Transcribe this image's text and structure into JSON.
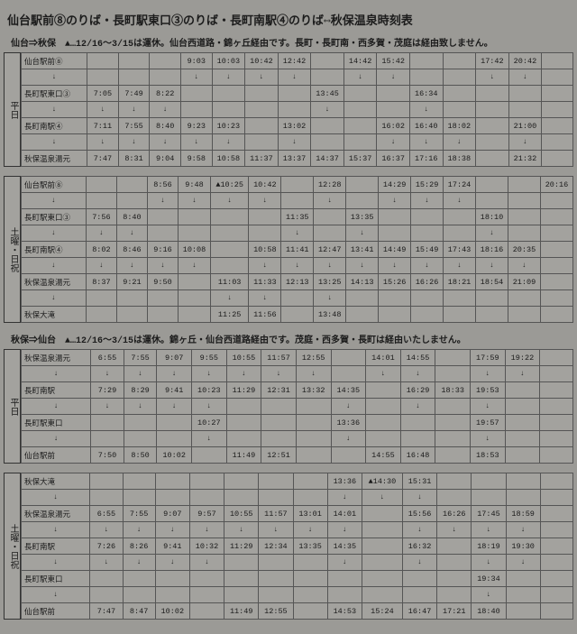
{
  "title": "仙台駅前⑧のりば・長町駅東口③のりば・長町南駅④のりば⇔秋保温泉時刻表",
  "sections": [
    {
      "heading": "仙台⇒秋保　▲…12/16～3/15は運休。仙台西道路・錦ヶ丘経由です。長町・長町南・西多賀・茂庭は経由致しません。",
      "blocks": [
        {
          "day_label": "平日",
          "stops": [
            "仙台駅前⑧",
            "↓",
            "長町駅東口③",
            "↓",
            "長町南駅④",
            "↓",
            "秋保温泉湯元"
          ],
          "cols": 15,
          "rows": [
            [
              "",
              "",
              "",
              "9:03",
              "10:03",
              "10:42",
              "12:42",
              "",
              "14:42",
              "15:42",
              "",
              "",
              "17:42",
              "20:42",
              ""
            ],
            [
              "",
              "",
              "",
              "↓",
              "↓",
              "↓",
              "↓",
              "",
              "↓",
              "↓",
              "",
              "",
              "↓",
              "↓",
              ""
            ],
            [
              "7:05",
              "7:49",
              "8:22",
              "",
              "",
              "",
              "",
              "13:45",
              "",
              "",
              "16:34",
              "",
              "",
              "",
              ""
            ],
            [
              "↓",
              "↓",
              "↓",
              "",
              "",
              "",
              "",
              "↓",
              "",
              "",
              "↓",
              "",
              "",
              "",
              ""
            ],
            [
              "7:11",
              "7:55",
              "8:40",
              "9:23",
              "10:23",
              "",
              "13:02",
              "",
              "",
              "16:02",
              "16:40",
              "18:02",
              "",
              "21:00",
              ""
            ],
            [
              "↓",
              "↓",
              "↓",
              "↓",
              "↓",
              "",
              "↓",
              "",
              "",
              "↓",
              "↓",
              "↓",
              "",
              "↓",
              ""
            ],
            [
              "7:47",
              "8:31",
              "9:04",
              "9:58",
              "10:58",
              "11:37",
              "13:37",
              "14:37",
              "15:37",
              "16:37",
              "17:16",
              "18:38",
              "",
              "21:32",
              ""
            ]
          ]
        },
        {
          "day_label": "土曜・日祝",
          "stops": [
            "仙台駅前⑧",
            "↓",
            "長町駅東口③",
            "↓",
            "長町南駅④",
            "↓",
            "秋保温泉湯元",
            "↓",
            "秋保大滝"
          ],
          "cols": 15,
          "rows": [
            [
              "",
              "",
              "8:56",
              "9:48",
              "▲10:25",
              "10:42",
              "",
              "12:28",
              "",
              "14:29",
              "15:29",
              "17:24",
              "",
              "",
              "20:16"
            ],
            [
              "",
              "",
              "↓",
              "↓",
              "↓",
              "↓",
              "",
              "↓",
              "",
              "↓",
              "↓",
              "↓",
              "",
              "",
              ""
            ],
            [
              "7:56",
              "8:40",
              "",
              "",
              "",
              "",
              "11:35",
              "",
              "13:35",
              "",
              "",
              "",
              "18:10",
              "",
              ""
            ],
            [
              "↓",
              "↓",
              "",
              "",
              "",
              "",
              "↓",
              "",
              "↓",
              "",
              "",
              "",
              "↓",
              "",
              ""
            ],
            [
              "8:02",
              "8:46",
              "9:16",
              "10:08",
              "",
              "10:58",
              "11:41",
              "12:47",
              "13:41",
              "14:49",
              "15:49",
              "17:43",
              "18:16",
              "20:35",
              ""
            ],
            [
              "↓",
              "↓",
              "↓",
              "↓",
              "",
              "↓",
              "↓",
              "↓",
              "↓",
              "↓",
              "↓",
              "↓",
              "↓",
              "↓",
              ""
            ],
            [
              "8:37",
              "9:21",
              "9:50",
              "",
              "11:03",
              "11:33",
              "12:13",
              "13:25",
              "14:13",
              "15:26",
              "16:26",
              "18:21",
              "18:54",
              "21:09",
              ""
            ],
            [
              "",
              "",
              "",
              "",
              "↓",
              "↓",
              "",
              "↓",
              "",
              "",
              "",
              "",
              "",
              "",
              ""
            ],
            [
              "",
              "",
              "",
              "",
              "11:25",
              "11:56",
              "",
              "13:48",
              "",
              "",
              "",
              "",
              "",
              "",
              ""
            ]
          ]
        }
      ]
    },
    {
      "heading": "秋保⇒仙台　▲…12/16～3/15は運休。錦ヶ丘・仙台西道路経由です。茂庭・西多賀・長町は経由いたしません。",
      "blocks": [
        {
          "day_label": "平日",
          "stops": [
            "秋保温泉湯元",
            "↓",
            "長町南駅",
            "↓",
            "長町駅東口",
            "↓",
            "仙台駅前"
          ],
          "cols": 14,
          "rows": [
            [
              "6:55",
              "7:55",
              "9:07",
              "9:55",
              "10:55",
              "11:57",
              "12:55",
              "",
              "14:01",
              "14:55",
              "",
              "17:59",
              "19:22",
              ""
            ],
            [
              "↓",
              "↓",
              "↓",
              "↓",
              "↓",
              "↓",
              "↓",
              "",
              "↓",
              "↓",
              "",
              "↓",
              "↓",
              ""
            ],
            [
              "7:29",
              "8:29",
              "9:41",
              "10:23",
              "11:29",
              "12:31",
              "13:32",
              "14:35",
              "",
              "16:29",
              "18:33",
              "19:53",
              "",
              ""
            ],
            [
              "↓",
              "↓",
              "↓",
              "↓",
              "",
              "",
              "",
              "↓",
              "",
              "↓",
              "",
              "↓",
              "",
              ""
            ],
            [
              "",
              "",
              "",
              "10:27",
              "",
              "",
              "",
              "13:36",
              "",
              "",
              "",
              "19:57",
              "",
              ""
            ],
            [
              "",
              "",
              "",
              "↓",
              "",
              "",
              "",
              "↓",
              "",
              "",
              "",
              "↓",
              "",
              ""
            ],
            [
              "7:50",
              "8:50",
              "10:02",
              "",
              "11:49",
              "12:51",
              "",
              "",
              "14:55",
              "16:48",
              "",
              "18:53",
              "",
              ""
            ]
          ]
        },
        {
          "day_label": "土曜・日祝",
          "stops": [
            "秋保大滝",
            "↓",
            "秋保温泉湯元",
            "↓",
            "長町南駅",
            "↓",
            "長町駅東口",
            "↓",
            "仙台駅前"
          ],
          "cols": 14,
          "rows": [
            [
              "",
              "",
              "",
              "",
              "",
              "",
              "",
              "13:36",
              "▲14:30",
              "15:31",
              "",
              "",
              "",
              ""
            ],
            [
              "",
              "",
              "",
              "",
              "",
              "",
              "",
              "↓",
              "↓",
              "↓",
              "",
              "",
              "",
              ""
            ],
            [
              "6:55",
              "7:55",
              "9:07",
              "9:57",
              "10:55",
              "11:57",
              "13:01",
              "14:01",
              "",
              "15:56",
              "16:26",
              "17:45",
              "18:59",
              ""
            ],
            [
              "↓",
              "↓",
              "↓",
              "↓",
              "↓",
              "↓",
              "↓",
              "↓",
              "",
              "↓",
              "↓",
              "↓",
              "↓",
              ""
            ],
            [
              "7:26",
              "8:26",
              "9:41",
              "10:32",
              "11:29",
              "12:34",
              "13:35",
              "14:35",
              "",
              "16:32",
              "",
              "18:19",
              "19:30",
              ""
            ],
            [
              "↓",
              "↓",
              "↓",
              "↓",
              "",
              "",
              "",
              "↓",
              "",
              "↓",
              "",
              "↓",
              "↓",
              ""
            ],
            [
              "",
              "",
              "",
              "",
              "",
              "",
              "",
              "",
              "",
              "",
              "",
              "19:34",
              "",
              ""
            ],
            [
              "",
              "",
              "",
              "",
              "",
              "",
              "",
              "",
              "",
              "",
              "",
              "↓",
              "",
              ""
            ],
            [
              "7:47",
              "8:47",
              "10:02",
              "",
              "11:49",
              "12:55",
              "",
              "14:53",
              "15:24",
              "16:47",
              "17:21",
              "18:40",
              "",
              ""
            ]
          ]
        }
      ]
    }
  ]
}
